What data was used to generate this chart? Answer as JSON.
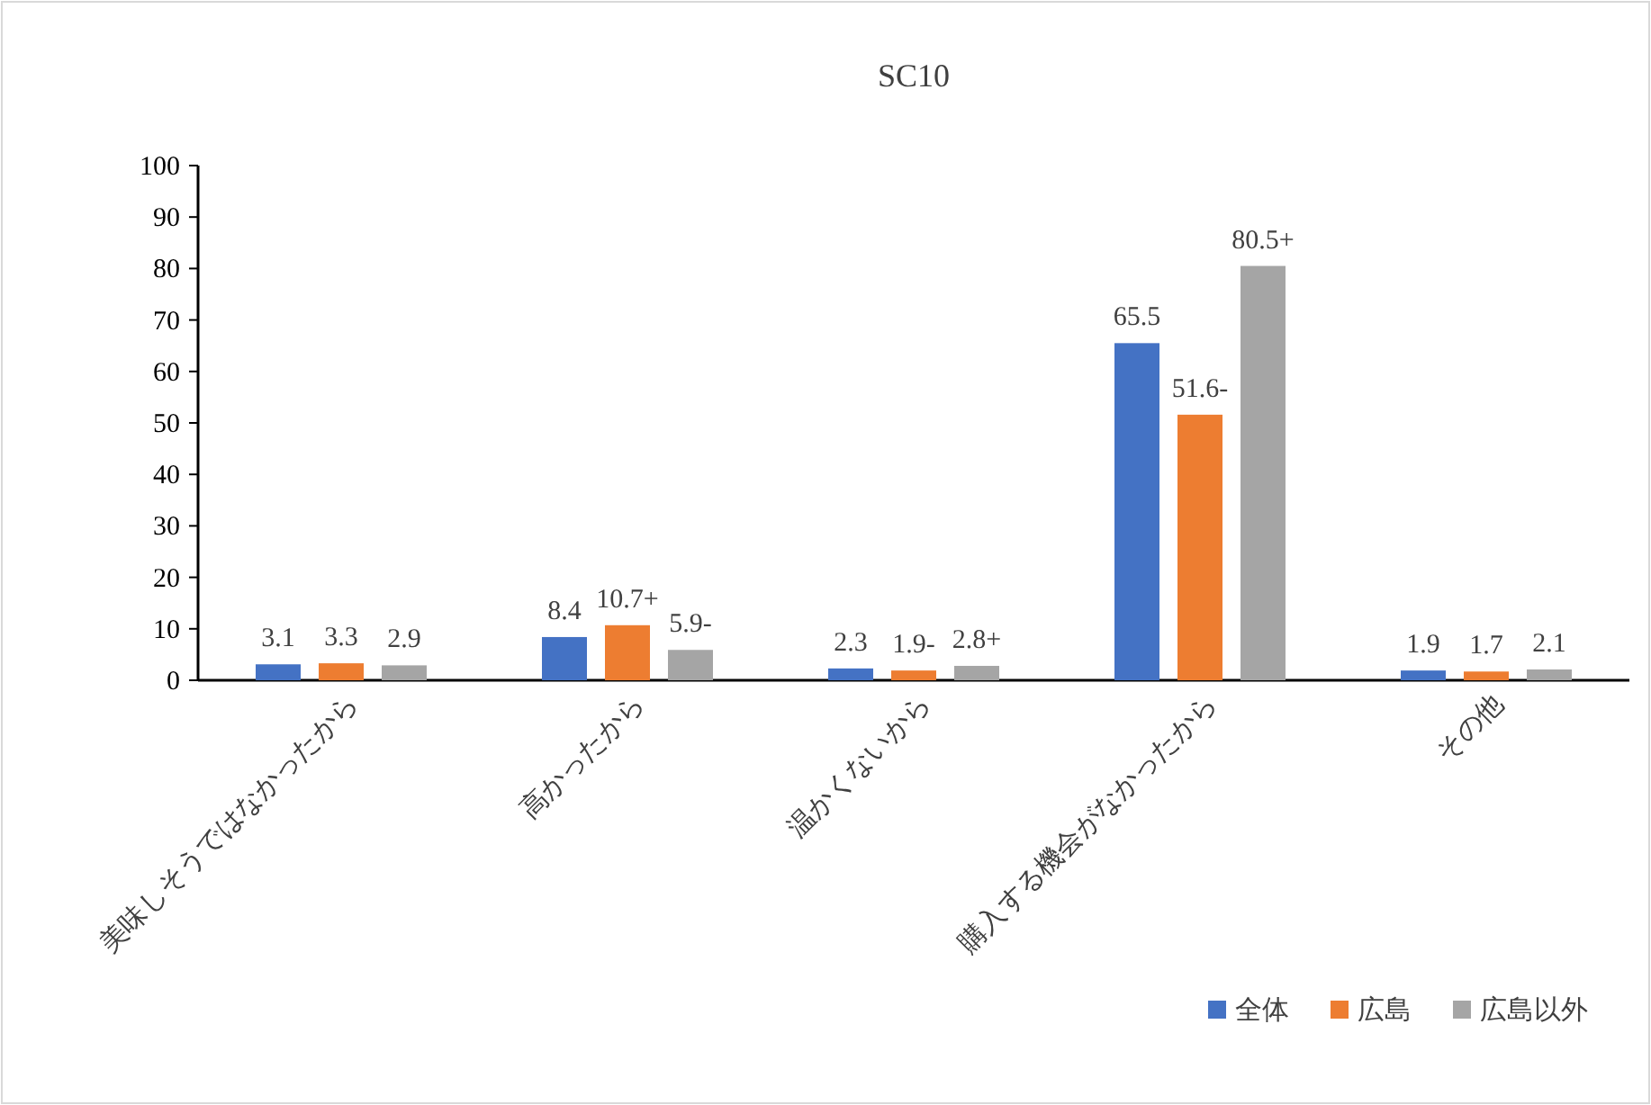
{
  "chart_data": {
    "type": "bar",
    "title": "SC10",
    "categories": [
      "美味しそうではなかったから",
      "高かったから",
      "温かくないから",
      "購入する機会がなかったから",
      "その他"
    ],
    "series": [
      {
        "name": "全体",
        "color": "#4472c4",
        "values": [
          3.1,
          8.4,
          2.3,
          65.5,
          1.9
        ],
        "value_labels": [
          "3.1",
          "8.4",
          "2.3",
          "65.5",
          "1.9"
        ]
      },
      {
        "name": "広島",
        "color": "#ed7d31",
        "values": [
          3.3,
          10.7,
          1.9,
          51.6,
          1.7
        ],
        "value_labels": [
          "3.3",
          "10.7+",
          "1.9-",
          "51.6-",
          "1.7"
        ]
      },
      {
        "name": "広島以外",
        "color": "#a5a5a5",
        "values": [
          2.9,
          5.9,
          2.8,
          80.5,
          2.1
        ],
        "value_labels": [
          "2.9",
          "5.9-",
          "2.8+",
          "80.5+",
          "2.1"
        ]
      }
    ],
    "ylim": [
      0,
      100
    ],
    "yticks": [
      0,
      10,
      20,
      30,
      40,
      50,
      60,
      70,
      80,
      90,
      100
    ],
    "grid": false,
    "legend": "bottom right"
  }
}
